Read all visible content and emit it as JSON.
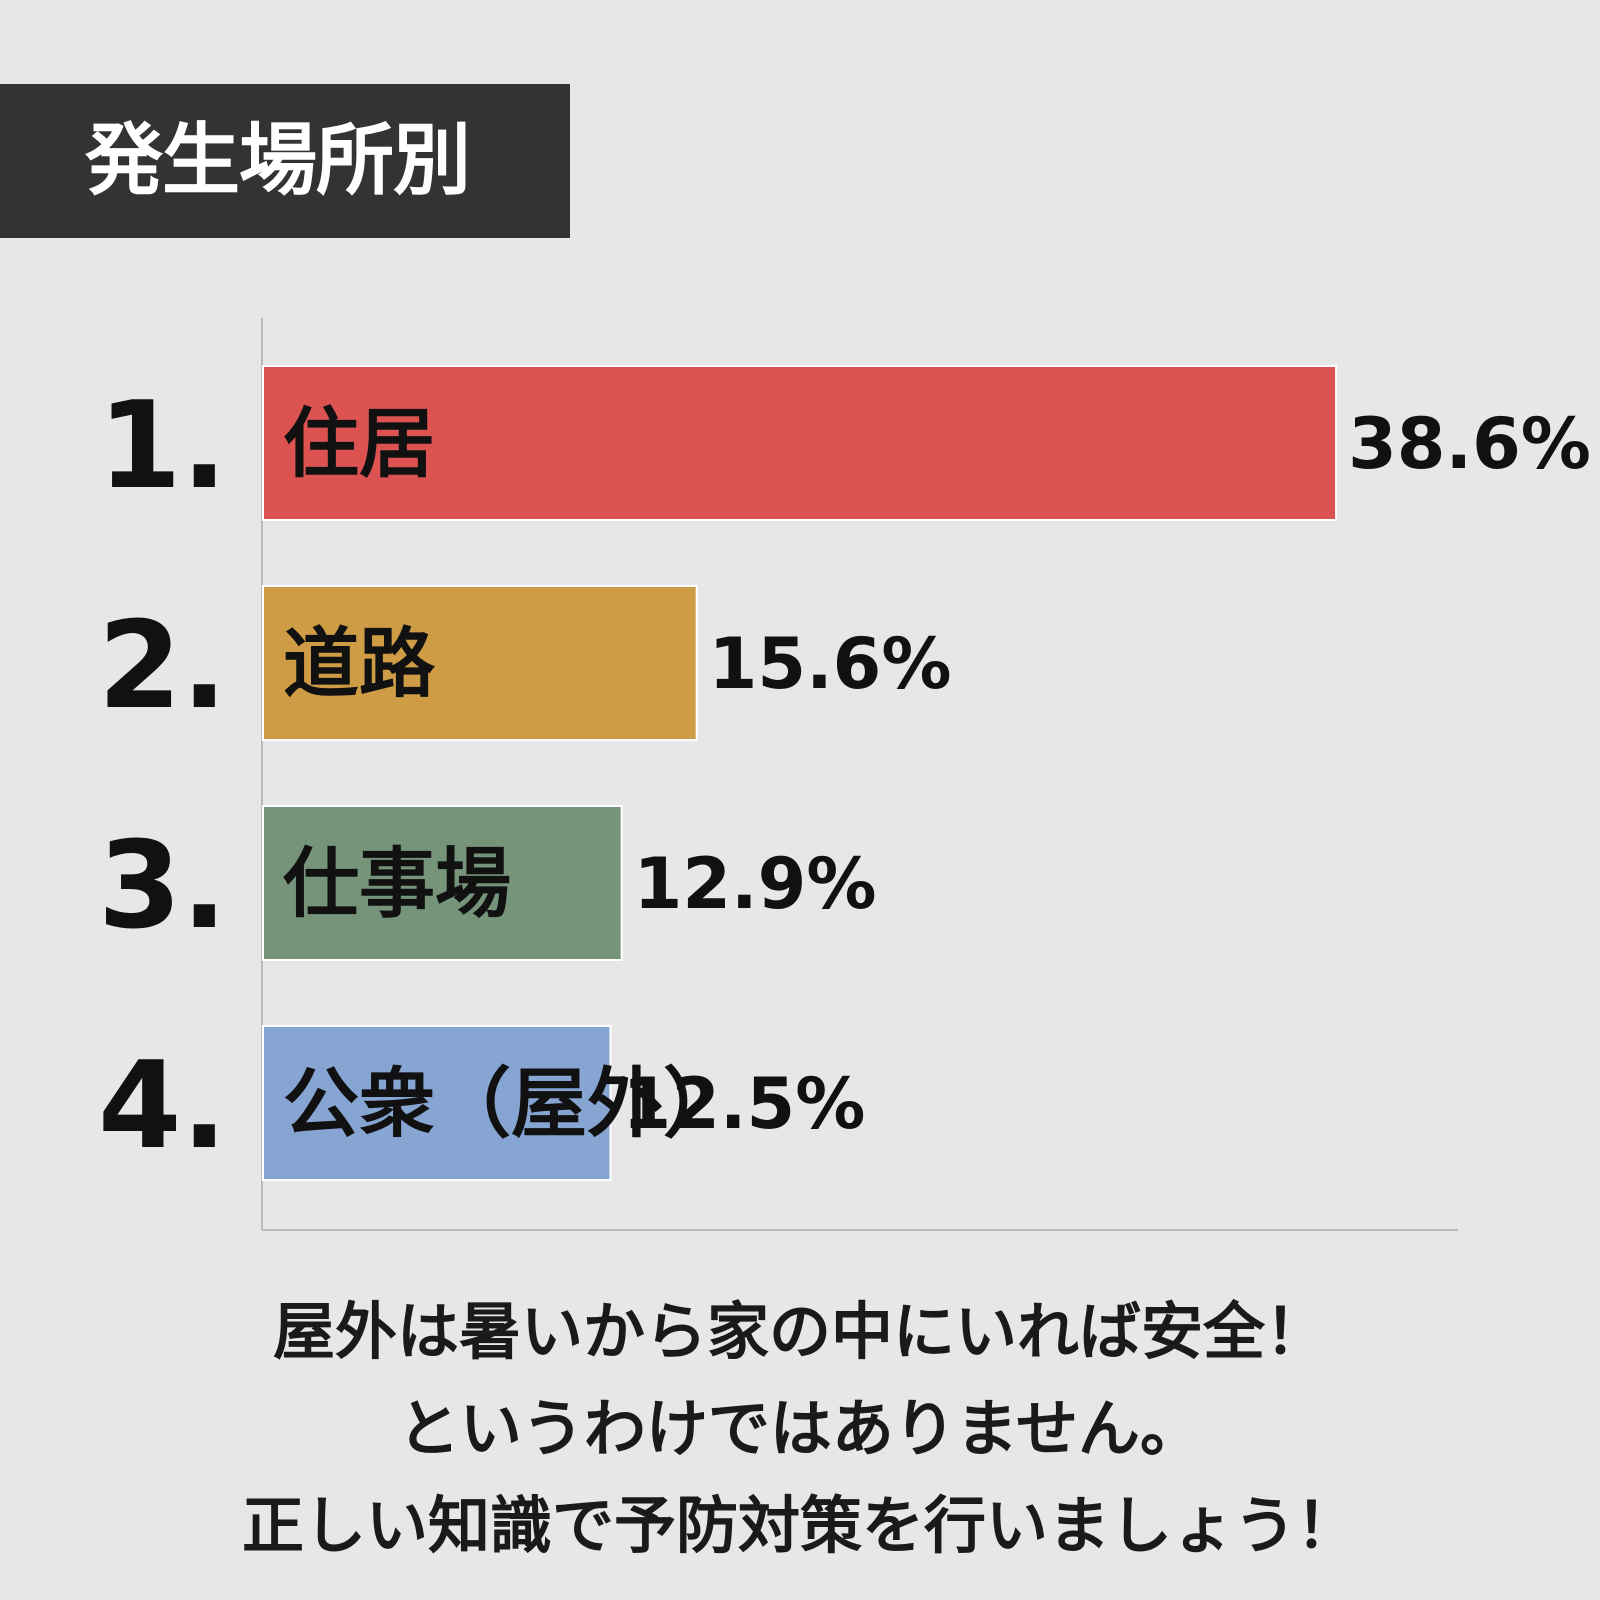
{
  "title": "発生場所別",
  "chart_data": {
    "type": "bar",
    "orientation": "horizontal",
    "ranks": [
      "1.",
      "2.",
      "3.",
      "4."
    ],
    "categories": [
      "住居",
      "道路",
      "仕事場",
      "公衆（屋外）"
    ],
    "values": [
      38.6,
      15.6,
      12.9,
      12.5
    ],
    "value_labels": [
      "38.6%",
      "15.6%",
      "12.9%",
      "12.5%"
    ],
    "colors": [
      "#dc5352",
      "#cf9c46",
      "#76947a",
      "#86a5d2"
    ],
    "unit": "%",
    "grid": false,
    "legend": "none"
  },
  "footer": {
    "line1": "屋外は暑いから家の中にいれば安全！",
    "line2": "というわけではありません。",
    "line3": "正しい知識で予防対策を行いましょう！"
  }
}
